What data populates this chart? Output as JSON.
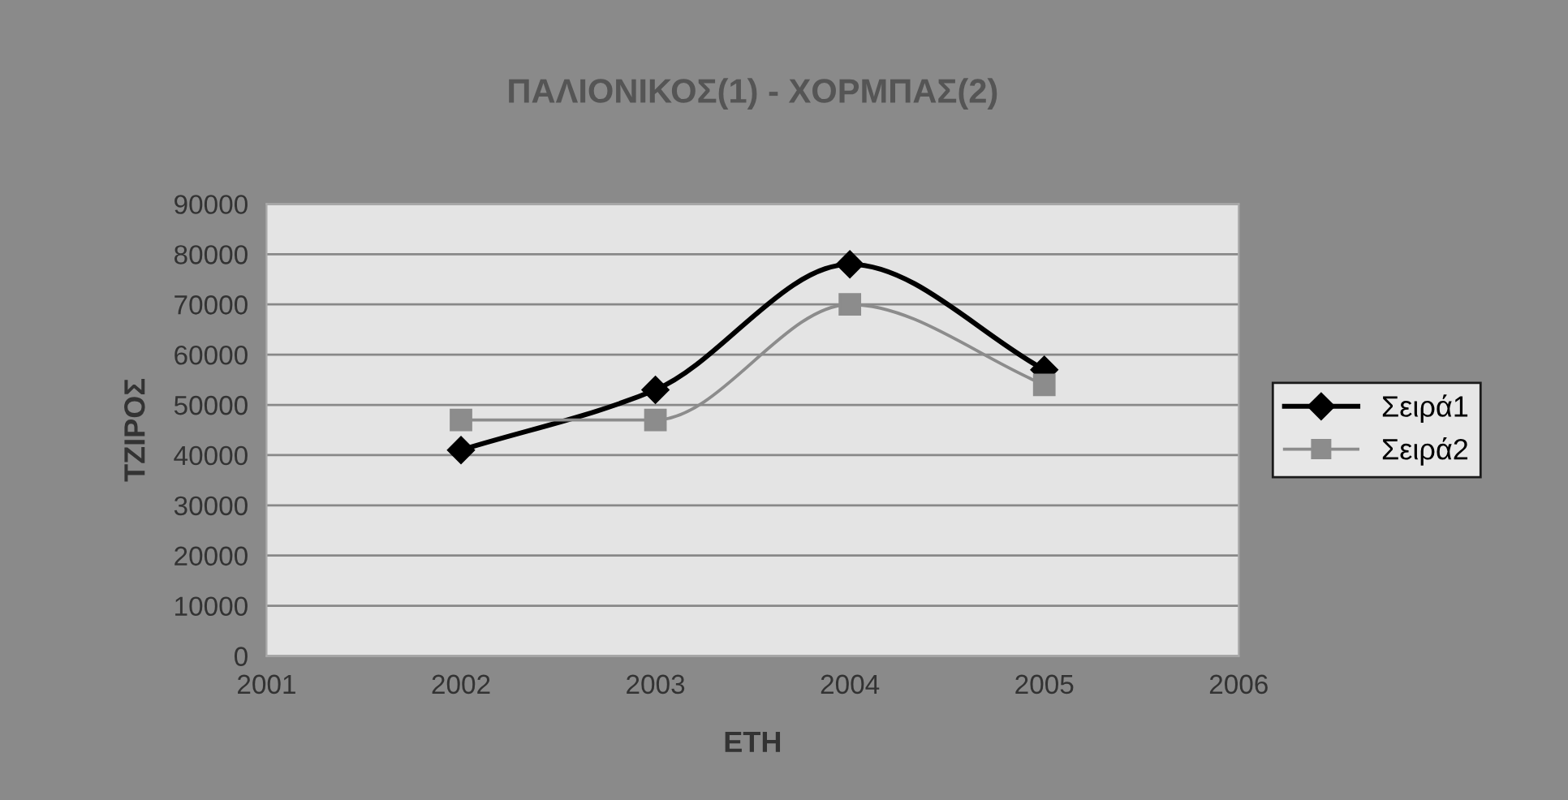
{
  "chart_data": {
    "type": "line",
    "title": "ΠΑΛΙΟΝΙΚΟΣ(1) - ΧΟΡΜΠΑΣ(2)",
    "xlabel": "ΕΤΗ",
    "ylabel": "ΤΖΙΡΟΣ",
    "x": [
      2002,
      2003,
      2004,
      2005
    ],
    "series": [
      {
        "name": "Σειρά1",
        "color": "#000000",
        "marker": "diamond",
        "values": [
          41000,
          53000,
          78000,
          57000
        ]
      },
      {
        "name": "Σειρά2",
        "color": "#8c8c8c",
        "marker": "square",
        "values": [
          47000,
          47000,
          70000,
          54000
        ]
      }
    ],
    "xlim": [
      2001,
      2006
    ],
    "xticks": [
      2001,
      2002,
      2003,
      2004,
      2005,
      2006
    ],
    "ylim": [
      0,
      90000
    ],
    "yticks": [
      0,
      10000,
      20000,
      30000,
      40000,
      50000,
      60000,
      70000,
      80000,
      90000
    ],
    "grid": "y",
    "legend": "right",
    "line_style": "solid"
  }
}
